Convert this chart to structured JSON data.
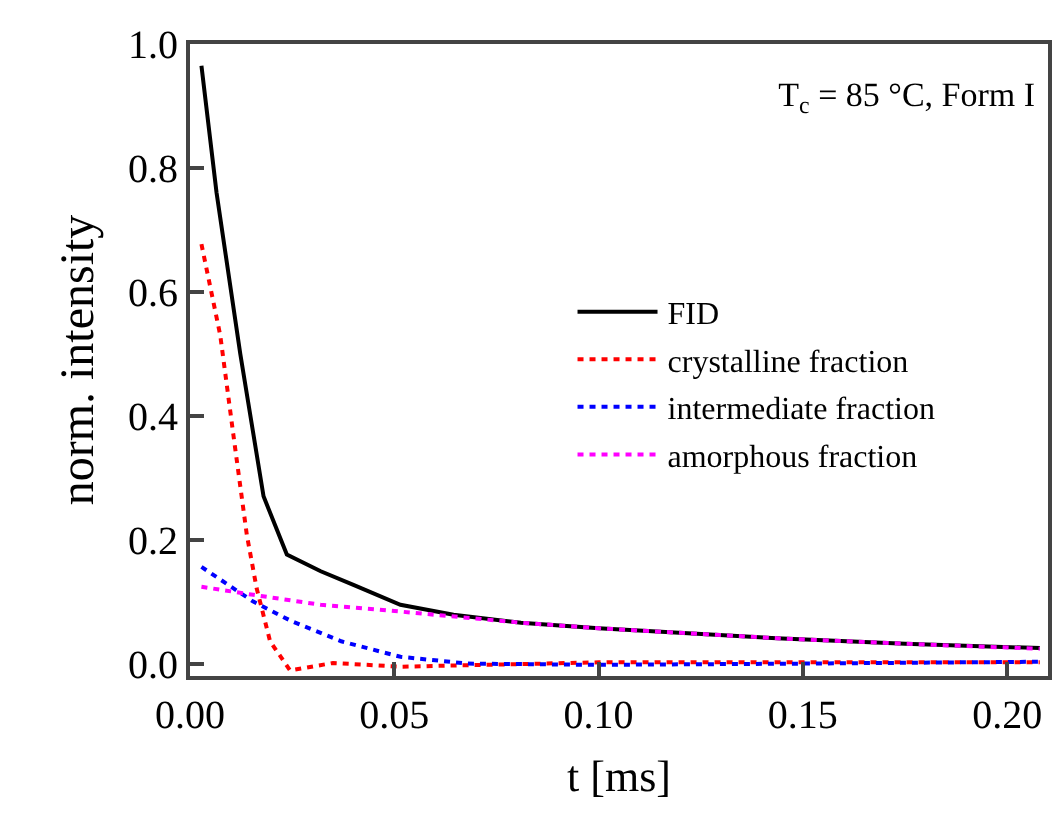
{
  "chart_data": {
    "type": "line",
    "title": "T$_{c}$ = 85 °C, Form I",
    "xlabel": "t [ms]",
    "ylabel": "norm. intensity",
    "xlim": [
      0,
      0.21
    ],
    "xticks": [
      {
        "value": 0,
        "label": "0.00"
      },
      0.05,
      {
        "value": 0.1,
        "label": "0.10"
      },
      0.15,
      {
        "value": 0.2,
        "label": "0.20"
      }
    ],
    "ylim": [
      -0.02,
      1.0
    ],
    "yticks": [
      {
        "value": 0,
        "label": "0.0"
      },
      0.2,
      0.4,
      0.6,
      0.8,
      {
        "value": 1,
        "label": "1.0"
      }
    ],
    "grid": false,
    "legend": "right",
    "marker": "none",
    "series": [
      {
        "name": "FID",
        "color": "#000000",
        "line_style": "solid",
        "x": [
          0.0028,
          0.0065,
          0.0123,
          0.018,
          0.0237,
          0.032,
          0.04,
          0.0515,
          0.0645,
          0.081,
          0.1,
          0.1436,
          0.175,
          0.208
        ],
        "values": [
          0.965,
          0.76,
          0.5,
          0.27,
          0.176,
          0.149,
          0.127,
          0.095,
          0.079,
          0.066,
          0.057,
          0.041,
          0.032,
          0.025
        ]
      },
      {
        "name": "crystalline fraction",
        "color": "#ff0000",
        "line_style": "dotted",
        "x": [
          0.0028,
          0.0074,
          0.0106,
          0.0139,
          0.0163,
          0.0196,
          0.0245,
          0.035,
          0.0515,
          0.1,
          0.15,
          0.208
        ],
        "values": [
          0.677,
          0.53,
          0.37,
          0.208,
          0.122,
          0.036,
          -0.011,
          0.001,
          -0.005,
          0.002,
          0.002,
          0.002
        ]
      },
      {
        "name": "intermediate fraction",
        "color": "#0000ff",
        "line_style": "dotted",
        "x": [
          0.0028,
          0.0155,
          0.025,
          0.037,
          0.0515,
          0.068,
          0.1,
          0.15,
          0.208
        ],
        "values": [
          0.156,
          0.1,
          0.068,
          0.036,
          0.011,
          0.0,
          -0.002,
          0.0,
          0.003
        ]
      },
      {
        "name": "amorphous fraction",
        "color": "#ff00ff",
        "line_style": "dotted",
        "x": [
          0.0028,
          0.0155,
          0.032,
          0.0515,
          0.081,
          0.1,
          0.1436,
          0.175,
          0.208
        ],
        "values": [
          0.124,
          0.111,
          0.095,
          0.084,
          0.066,
          0.057,
          0.041,
          0.032,
          0.024
        ]
      }
    ]
  }
}
